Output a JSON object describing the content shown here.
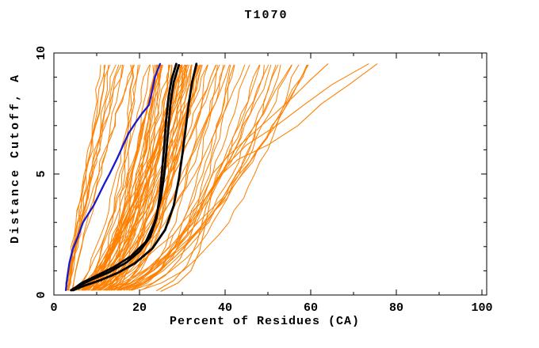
{
  "page": {
    "background": "#ffffff"
  },
  "chart_data": {
    "type": "line",
    "title": "T1070",
    "xlabel": "Percent of Residues (CA)",
    "ylabel": "Distance Cutoff, A",
    "xlim": [
      0,
      101
    ],
    "ylim": [
      0,
      10
    ],
    "x_major_ticks": [
      0,
      20,
      40,
      60,
      80,
      100
    ],
    "x_minor_ticks": [
      10,
      30,
      50,
      70,
      90
    ],
    "y_major_ticks": [
      0,
      5,
      10
    ],
    "y_minor_ticks": [
      1,
      2,
      3,
      4,
      6,
      7,
      8,
      9
    ],
    "grid": false,
    "legend": "none",
    "colors": {
      "models_orange": "#ff8000",
      "highlight_black": "#000000",
      "highlight_blue": "#1a1acd",
      "axis": "#000000",
      "background": "#ffffff"
    },
    "series": {
      "blue_model": {
        "color": "highlight_blue",
        "points": [
          [
            2.8,
            0.2
          ],
          [
            3.1,
            0.7
          ],
          [
            3.6,
            1.3
          ],
          [
            4.4,
            1.9
          ],
          [
            5.6,
            2.4
          ],
          [
            6.8,
            3.0
          ],
          [
            8.2,
            3.4
          ],
          [
            9.3,
            3.7
          ],
          [
            10.4,
            4.1
          ],
          [
            11.8,
            4.6
          ],
          [
            13.0,
            5.0
          ],
          [
            14.8,
            5.65
          ],
          [
            16.2,
            6.2
          ],
          [
            17.5,
            6.7
          ],
          [
            19.0,
            7.1
          ],
          [
            20.6,
            7.5
          ],
          [
            22.2,
            7.85
          ],
          [
            22.9,
            8.4
          ],
          [
            23.6,
            9.0
          ],
          [
            24.8,
            9.55
          ]
        ]
      },
      "black_models": [
        [
          [
            4.0,
            0.2
          ],
          [
            6.0,
            0.4
          ],
          [
            9.0,
            0.65
          ],
          [
            13.0,
            0.95
          ],
          [
            17.0,
            1.35
          ],
          [
            20.0,
            1.8
          ],
          [
            22.5,
            2.4
          ],
          [
            24.0,
            3.2
          ],
          [
            24.8,
            4.2
          ],
          [
            25.3,
            5.2
          ],
          [
            25.8,
            6.2
          ],
          [
            26.2,
            7.2
          ],
          [
            26.8,
            8.2
          ],
          [
            27.5,
            8.9
          ],
          [
            28.6,
            9.55
          ]
        ],
        [
          [
            4.5,
            0.2
          ],
          [
            7.0,
            0.38
          ],
          [
            11.0,
            0.62
          ],
          [
            15.0,
            0.92
          ],
          [
            19.0,
            1.32
          ],
          [
            23.0,
            1.92
          ],
          [
            26.0,
            2.7
          ],
          [
            28.0,
            3.7
          ],
          [
            29.2,
            4.8
          ],
          [
            30.0,
            5.8
          ],
          [
            30.8,
            6.9
          ],
          [
            31.5,
            7.9
          ],
          [
            32.3,
            8.8
          ],
          [
            33.3,
            9.55
          ]
        ],
        [
          [
            4.2,
            0.2
          ],
          [
            6.5,
            0.5
          ],
          [
            10.0,
            0.8
          ],
          [
            14.0,
            1.15
          ],
          [
            18.0,
            1.6
          ],
          [
            21.5,
            2.2
          ],
          [
            23.5,
            3.0
          ],
          [
            25.0,
            4.0
          ],
          [
            25.8,
            5.0
          ],
          [
            26.3,
            6.0
          ],
          [
            26.8,
            7.0
          ],
          [
            27.3,
            8.0
          ],
          [
            28.0,
            8.8
          ],
          [
            29.2,
            9.5
          ]
        ]
      ],
      "orange_outlier_models": [
        [
          [
            25,
            0.15
          ],
          [
            29,
            0.5
          ],
          [
            32,
            1.0
          ],
          [
            34,
            1.8
          ],
          [
            35.5,
            3.0
          ],
          [
            37,
            4.3
          ],
          [
            40,
            5.3
          ],
          [
            45,
            6.2
          ],
          [
            52,
            7.0
          ],
          [
            58,
            7.8
          ],
          [
            65,
            8.7
          ],
          [
            73.5,
            9.55
          ]
        ],
        [
          [
            24,
            0.18
          ],
          [
            28,
            0.6
          ],
          [
            31,
            1.2
          ],
          [
            33.5,
            2.2
          ],
          [
            35.5,
            3.6
          ],
          [
            38,
            4.8
          ],
          [
            43,
            5.6
          ],
          [
            50,
            6.2
          ],
          [
            57,
            7.0
          ],
          [
            62.5,
            7.9
          ],
          [
            69,
            8.7
          ],
          [
            75.5,
            9.55
          ]
        ],
        [
          [
            21,
            0.25
          ],
          [
            26,
            0.8
          ],
          [
            29.5,
            1.5
          ],
          [
            32,
            2.5
          ],
          [
            34.5,
            3.8
          ],
          [
            37,
            5.0
          ],
          [
            41,
            5.8
          ],
          [
            46,
            6.6
          ],
          [
            51,
            7.4
          ],
          [
            56,
            8.2
          ],
          [
            60,
            8.9
          ],
          [
            64,
            9.55
          ]
        ]
      ],
      "orange_model_band": {
        "seed": 11,
        "jitter": 0.9,
        "y_bottom": 0.2,
        "y_top": 9.5,
        "y_step": 0.5,
        "groups": [
          {
            "count": 12,
            "x_bottom_range": [
              2.5,
              4.5
            ],
            "x_top_range": [
              9,
              19
            ],
            "shape_exp_range": [
              0.85,
              1.3
            ]
          },
          {
            "count": 62,
            "x_bottom_range": [
              3.0,
              7.5
            ],
            "x_top_range": [
              18,
              42
            ],
            "shape_exp_range": [
              0.18,
              0.75
            ]
          },
          {
            "count": 16,
            "x_bottom_range": [
              4.0,
              8.0
            ],
            "x_top_range": [
              42,
              60
            ],
            "shape_exp_range": [
              0.3,
              0.6
            ]
          }
        ]
      }
    }
  }
}
